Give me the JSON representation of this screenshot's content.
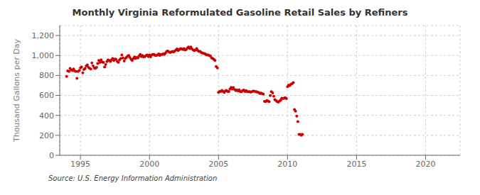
{
  "chart_data": {
    "type": "scatter",
    "title": "Monthly Virginia Reformulated Gasoline Retail Sales by Refiners",
    "ylabel": "Thousand Gallons per Day",
    "annotations": [
      "Source: U.S. Energy Information Administration"
    ],
    "color": "#cc0000",
    "grid": true,
    "xlim": [
      1993.5,
      2022.5
    ],
    "ylim": [
      0,
      1300
    ],
    "xticks": [
      1995,
      2000,
      2005,
      2010,
      2015,
      2020
    ],
    "yticks": [
      0,
      200,
      400,
      600,
      800,
      {
        "value": 1000,
        "label": "1,000"
      },
      {
        "value": 1200,
        "label": "1,200"
      }
    ],
    "x": [
      1994.0,
      1994.08,
      1994.17,
      1994.25,
      1994.33,
      1994.42,
      1994.5,
      1994.58,
      1994.67,
      1994.75,
      1994.83,
      1994.92,
      1995.0,
      1995.08,
      1995.17,
      1995.25,
      1995.33,
      1995.42,
      1995.5,
      1995.58,
      1995.67,
      1995.75,
      1995.83,
      1995.92,
      1996.0,
      1996.08,
      1996.17,
      1996.25,
      1996.33,
      1996.42,
      1996.5,
      1996.58,
      1996.67,
      1996.75,
      1996.83,
      1996.92,
      1997.0,
      1997.08,
      1997.17,
      1997.25,
      1997.33,
      1997.42,
      1997.5,
      1997.58,
      1997.67,
      1997.75,
      1997.83,
      1997.92,
      1998.0,
      1998.08,
      1998.17,
      1998.25,
      1998.33,
      1998.42,
      1998.5,
      1998.58,
      1998.67,
      1998.75,
      1998.83,
      1998.92,
      1999.0,
      1999.08,
      1999.17,
      1999.25,
      1999.33,
      1999.42,
      1999.5,
      1999.58,
      1999.67,
      1999.75,
      1999.83,
      1999.92,
      2000.0,
      2000.08,
      2000.17,
      2000.25,
      2000.33,
      2000.42,
      2000.5,
      2000.58,
      2000.67,
      2000.75,
      2000.83,
      2000.92,
      2001.0,
      2001.08,
      2001.17,
      2001.25,
      2001.33,
      2001.42,
      2001.5,
      2001.58,
      2001.67,
      2001.75,
      2001.83,
      2001.92,
      2002.0,
      2002.08,
      2002.17,
      2002.25,
      2002.33,
      2002.42,
      2002.5,
      2002.58,
      2002.67,
      2002.75,
      2002.83,
      2002.92,
      2003.0,
      2003.08,
      2003.17,
      2003.25,
      2003.33,
      2003.42,
      2003.5,
      2003.58,
      2003.67,
      2003.75,
      2003.83,
      2003.92,
      2004.0,
      2004.08,
      2004.17,
      2004.25,
      2004.33,
      2004.42,
      2004.5,
      2004.58,
      2004.67,
      2004.75,
      2004.83,
      2004.92,
      2005.0,
      2005.08,
      2005.17,
      2005.25,
      2005.33,
      2005.42,
      2005.5,
      2005.58,
      2005.67,
      2005.75,
      2005.83,
      2005.92,
      2006.0,
      2006.08,
      2006.17,
      2006.25,
      2006.33,
      2006.42,
      2006.5,
      2006.58,
      2006.67,
      2006.75,
      2006.83,
      2006.92,
      2007.0,
      2007.08,
      2007.17,
      2007.25,
      2007.33,
      2007.42,
      2007.5,
      2007.58,
      2007.67,
      2007.75,
      2007.83,
      2007.92,
      2008.0,
      2008.08,
      2008.17,
      2008.25,
      2008.33,
      2008.42,
      2008.5,
      2008.58,
      2008.67,
      2008.75,
      2008.83,
      2008.92,
      2009.0,
      2009.08,
      2009.17,
      2009.25,
      2009.33,
      2009.42,
      2009.5,
      2009.58,
      2009.67,
      2009.75,
      2009.83,
      2009.92,
      2010.0,
      2010.08,
      2010.17,
      2010.25,
      2010.33,
      2010.42,
      2010.5,
      2010.58,
      2010.67,
      2010.75,
      2010.83,
      2010.92,
      2011.0,
      2011.08
    ],
    "values": [
      790,
      845,
      840,
      870,
      855,
      850,
      865,
      845,
      840,
      770,
      840,
      850,
      875,
      885,
      825,
      860,
      870,
      895,
      905,
      880,
      870,
      865,
      925,
      895,
      875,
      870,
      880,
      920,
      950,
      930,
      955,
      935,
      930,
      885,
      910,
      940,
      955,
      950,
      940,
      955,
      970,
      950,
      965,
      960,
      940,
      930,
      955,
      970,
      1005,
      975,
      945,
      970,
      980,
      995,
      1000,
      980,
      960,
      950,
      970,
      985,
      970,
      980,
      975,
      995,
      1010,
      990,
      1000,
      985,
      990,
      1000,
      1005,
      990,
      1005,
      985,
      1005,
      1010,
      1010,
      1000,
      1000,
      1005,
      1015,
      1000,
      1010,
      1010,
      1015,
      1010,
      1025,
      1040,
      1045,
      1035,
      1030,
      1035,
      1040,
      1035,
      1045,
      1055,
      1065,
      1050,
      1060,
      1070,
      1065,
      1060,
      1070,
      1055,
      1060,
      1075,
      1085,
      1070,
      1085,
      1065,
      1055,
      1050,
      1055,
      1070,
      1050,
      1040,
      1040,
      1030,
      1025,
      1020,
      1020,
      1010,
      1005,
      1005,
      1000,
      995,
      975,
      970,
      960,
      950,
      890,
      875,
      630,
      640,
      640,
      650,
      640,
      630,
      645,
      650,
      640,
      640,
      665,
      680,
      665,
      678,
      658,
      648,
      655,
      645,
      655,
      638,
      638,
      648,
      653,
      640,
      648,
      638,
      638,
      638,
      633,
      638,
      643,
      643,
      638,
      638,
      633,
      628,
      618,
      623,
      618,
      612,
      540,
      538,
      548,
      543,
      538,
      598,
      638,
      625,
      592,
      558,
      548,
      538,
      533,
      543,
      553,
      572,
      568,
      572,
      578,
      568,
      688,
      703,
      698,
      712,
      718,
      728,
      458,
      443,
      393,
      338,
      210,
      210,
      200,
      210
    ]
  }
}
